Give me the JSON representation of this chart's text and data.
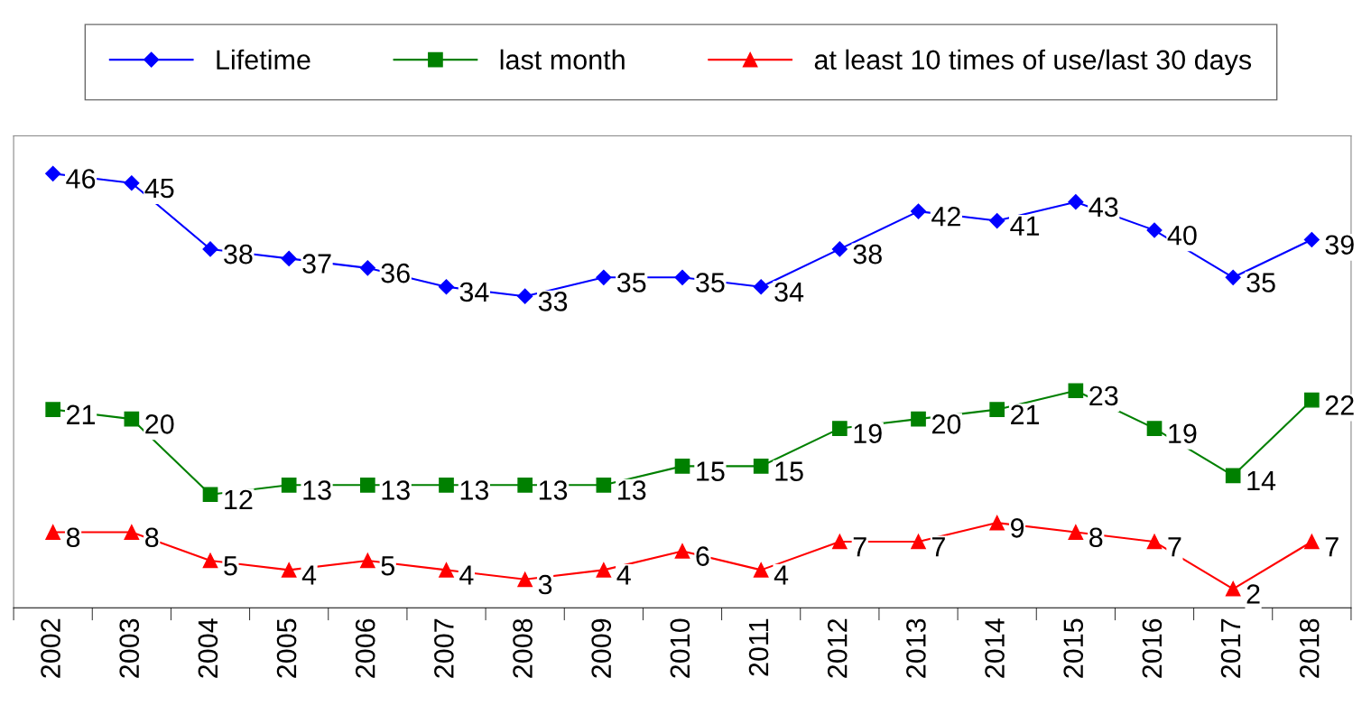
{
  "chart_data": {
    "type": "line",
    "categories": [
      "2002",
      "2003",
      "2004",
      "2005",
      "2006",
      "2007",
      "2008",
      "2009",
      "2010",
      "2011",
      "2012",
      "2013",
      "2014",
      "2015",
      "2016",
      "2017",
      "2018"
    ],
    "series": [
      {
        "name": "Lifetime",
        "color": "#0000ff",
        "marker": "diamond",
        "values": [
          46,
          45,
          38,
          37,
          36,
          34,
          33,
          35,
          35,
          34,
          38,
          42,
          41,
          43,
          40,
          35,
          39
        ]
      },
      {
        "name": "last month",
        "color": "#008000",
        "marker": "square",
        "values": [
          21,
          20,
          12,
          13,
          13,
          13,
          13,
          13,
          15,
          15,
          19,
          20,
          21,
          23,
          19,
          14,
          22
        ]
      },
      {
        "name": "at least 10 times of use/last 30 days",
        "color": "#ff0000",
        "marker": "triangle",
        "values": [
          8,
          8,
          5,
          4,
          5,
          4,
          3,
          4,
          6,
          4,
          7,
          7,
          9,
          8,
          7,
          2,
          7
        ]
      }
    ],
    "ylim": [
      0,
      50
    ],
    "tick_labels": "x",
    "data_labels": true,
    "legend": "top",
    "grid": false,
    "line_style": "solid"
  }
}
